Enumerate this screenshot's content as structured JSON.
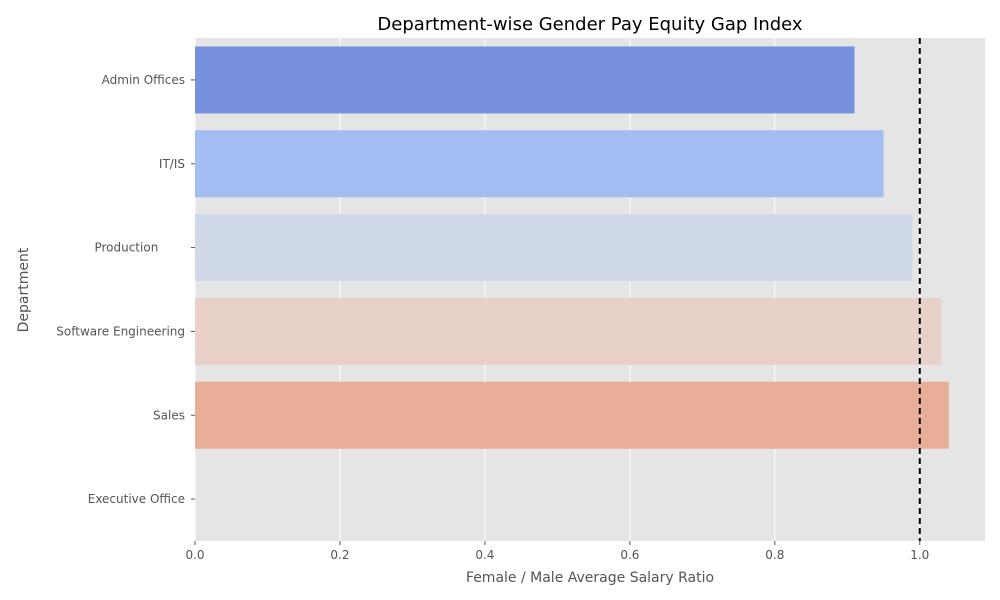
{
  "chart_data": {
    "type": "bar",
    "orientation": "horizontal",
    "title": "Department-wise Gender Pay Equity Gap Index",
    "xlabel": "Female / Male Average Salary Ratio",
    "ylabel": "Department",
    "xlim": [
      0,
      1.09
    ],
    "x_ticks": [
      "0.0",
      "0.2",
      "0.4",
      "0.6",
      "0.8",
      "1.0"
    ],
    "x_tick_values": [
      0,
      0.2,
      0.4,
      0.6,
      0.8,
      1.0
    ],
    "grid": true,
    "reference_line": {
      "value": 1.0,
      "style": "dashed",
      "color": "#000000"
    },
    "categories": [
      "Admin Offices",
      "IT/IS",
      "Production       ",
      "Software Engineering",
      "Sales",
      "Executive Office"
    ],
    "values": [
      0.91,
      0.95,
      0.99,
      1.03,
      1.04,
      null
    ],
    "colors": [
      "#7791df",
      "#a3bdf3",
      "#cfd9ea",
      "#e8d1c8",
      "#e9ae98",
      "#e9ae98"
    ]
  }
}
